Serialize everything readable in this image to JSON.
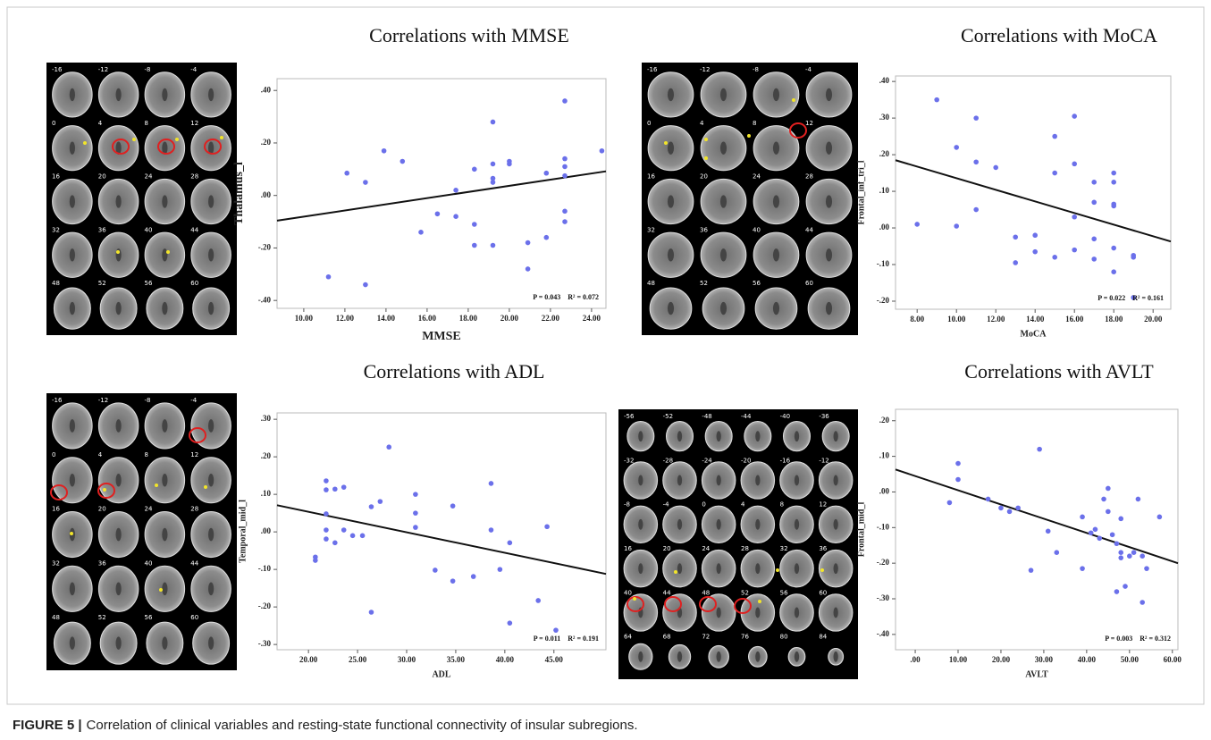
{
  "chart_data": [
    {
      "type": "scatter",
      "title": "Correlations with MMSE",
      "x_label": "MMSE",
      "y_label": "Thalamus_l",
      "color": "#6b70ea",
      "x": [
        11.2,
        12.1,
        13.0,
        13.0,
        13.9,
        14.8,
        15.7,
        16.5,
        17.4,
        17.4,
        18.3,
        18.3,
        18.3,
        19.2,
        19.2,
        19.2,
        19.2,
        19.2,
        20.0,
        20.0,
        20.9,
        20.9,
        21.8,
        21.8,
        22.7,
        22.7,
        22.7,
        22.7,
        22.7,
        22.7,
        24.5
      ],
      "values": [
        -0.31,
        0.085,
        0.05,
        -0.34,
        0.17,
        0.13,
        -0.14,
        -0.07,
        0.02,
        -0.08,
        0.1,
        -0.11,
        -0.19,
        0.28,
        0.12,
        0.065,
        0.05,
        -0.19,
        0.13,
        0.12,
        -0.18,
        -0.28,
        0.085,
        -0.16,
        0.36,
        0.14,
        0.11,
        0.075,
        -0.06,
        -0.1,
        0.17
      ],
      "fit": {
        "x": [
          8.7,
          24.7
        ],
        "y": [
          -0.096,
          0.092
        ]
      },
      "annotations": [
        "P = 0.043",
        "R² = 0.072"
      ],
      "xlim": [
        8.7,
        24.7
      ],
      "ylim": [
        -0.43,
        0.445
      ],
      "xticks": [
        {
          "value": 10,
          "label": "10.00"
        },
        {
          "value": 12,
          "label": "12.00"
        },
        {
          "value": 14,
          "label": "14.00"
        },
        {
          "value": 16,
          "label": "16.00"
        },
        {
          "value": 18,
          "label": "18.00"
        },
        {
          "value": 20,
          "label": "20.00"
        },
        {
          "value": 22,
          "label": "22.00"
        },
        {
          "value": 24,
          "label": "24.00"
        }
      ],
      "yticks": [
        {
          "value": 0.4,
          "label": ".40"
        },
        {
          "value": 0.2,
          "label": ".20"
        },
        {
          "value": 0,
          "label": ".00"
        },
        {
          "value": -0.2,
          "label": "-.20"
        },
        {
          "value": -0.4,
          "label": "-.40"
        }
      ]
    },
    {
      "type": "scatter",
      "title": "Correlations with MoCA",
      "x_label": "MoCA",
      "y_label": "Frontal_inf_tri_l",
      "color": "#6b70ea",
      "x": [
        8,
        9,
        10,
        10,
        11,
        11,
        11,
        12,
        13,
        13,
        14,
        14,
        15,
        15,
        15,
        16,
        16,
        16,
        16,
        17,
        17,
        17,
        17,
        18,
        18,
        18,
        18,
        18,
        18,
        19,
        19,
        19
      ],
      "values": [
        0.01,
        0.35,
        0.22,
        0.005,
        0.3,
        0.18,
        0.05,
        0.165,
        -0.025,
        -0.095,
        -0.02,
        -0.065,
        0.25,
        0.15,
        -0.08,
        0.305,
        0.175,
        0.03,
        -0.06,
        0.125,
        0.07,
        -0.03,
        -0.085,
        0.15,
        0.125,
        0.065,
        0.06,
        -0.055,
        -0.12,
        -0.08,
        -0.075,
        -0.19
      ],
      "fit": {
        "x": [
          6.9,
          20.9
        ],
        "y": [
          0.185,
          -0.037
        ]
      },
      "annotations": [
        "P = 0.022",
        "R² = 0.161"
      ],
      "xlim": [
        6.9,
        20.9
      ],
      "ylim": [
        -0.222,
        0.415
      ],
      "xticks": [
        {
          "value": 8,
          "label": "8.00"
        },
        {
          "value": 10,
          "label": "10.00"
        },
        {
          "value": 12,
          "label": "12.00"
        },
        {
          "value": 14,
          "label": "14.00"
        },
        {
          "value": 16,
          "label": "16.00"
        },
        {
          "value": 18,
          "label": "18.00"
        },
        {
          "value": 20,
          "label": "20.00"
        }
      ],
      "yticks": [
        {
          "value": 0.4,
          "label": ".40"
        },
        {
          "value": 0.3,
          "label": ".30"
        },
        {
          "value": 0.2,
          "label": ".20"
        },
        {
          "value": 0.1,
          "label": ".10"
        },
        {
          "value": 0,
          "label": ".00"
        },
        {
          "value": -0.1,
          "label": "-.10"
        },
        {
          "value": -0.2,
          "label": "-.20"
        }
      ]
    },
    {
      "type": "scatter",
      "title": "Correlations with ADL",
      "x_label": "ADL",
      "y_label": "Temporal_mid_l",
      "color": "#6b70ea",
      "x": [
        20.7,
        20.7,
        21.8,
        21.8,
        21.8,
        21.8,
        21.8,
        22.7,
        22.7,
        23.6,
        23.6,
        24.5,
        25.5,
        26.4,
        26.4,
        27.3,
        28.2,
        30.9,
        30.9,
        30.9,
        32.9,
        34.7,
        34.7,
        36.8,
        38.6,
        38.6,
        39.5,
        40.5,
        40.5,
        43.4,
        44.3,
        45.2
      ],
      "values": [
        -0.067,
        -0.076,
        0.136,
        0.112,
        0.048,
        0.005,
        -0.019,
        0.114,
        -0.029,
        0.119,
        0.005,
        -0.01,
        -0.01,
        0.067,
        -0.214,
        0.081,
        0.226,
        0.1,
        0.05,
        0.012,
        -0.102,
        0.069,
        -0.131,
        -0.119,
        0.129,
        0.005,
        -0.1,
        -0.029,
        -0.243,
        -0.183,
        0.014,
        -0.262
      ],
      "fit": {
        "x": [
          16.8,
          50.3
        ],
        "y": [
          0.071,
          -0.112
        ]
      },
      "annotations": [
        "P = 0.011",
        "R² = 0.191"
      ],
      "xlim": [
        16.8,
        50.3
      ],
      "ylim": [
        -0.314,
        0.317
      ],
      "xticks": [
        {
          "value": 20,
          "label": "20.00"
        },
        {
          "value": 25,
          "label": "25.00"
        },
        {
          "value": 30,
          "label": "30.00"
        },
        {
          "value": 35,
          "label": "35.00"
        },
        {
          "value": 40,
          "label": "40.00"
        },
        {
          "value": 45,
          "label": "45.00"
        }
      ],
      "yticks": [
        {
          "value": 0.3,
          "label": ".30"
        },
        {
          "value": 0.2,
          "label": ".20"
        },
        {
          "value": 0.1,
          "label": ".10"
        },
        {
          "value": 0,
          "label": ".00"
        },
        {
          "value": -0.1,
          "label": "-.10"
        },
        {
          "value": -0.2,
          "label": "-.20"
        },
        {
          "value": -0.3,
          "label": "-.30"
        }
      ]
    },
    {
      "type": "scatter",
      "title": "Correlations with AVLT",
      "x_label": "AVLT",
      "y_label": "Frontal_mid_l",
      "color": "#6b70ea",
      "x": [
        8,
        10,
        10,
        17,
        20,
        22,
        24,
        27,
        29,
        31,
        33,
        39,
        39,
        41,
        42,
        43,
        44,
        45,
        45,
        46,
        47,
        47,
        48,
        48,
        48,
        49,
        50,
        51,
        52,
        53,
        53,
        54,
        57
      ],
      "values": [
        -0.03,
        0.08,
        0.035,
        -0.02,
        -0.045,
        -0.055,
        -0.045,
        -0.22,
        0.12,
        -0.11,
        -0.17,
        -0.07,
        -0.215,
        -0.115,
        -0.105,
        -0.13,
        -0.02,
        0.01,
        -0.055,
        -0.12,
        -0.145,
        -0.28,
        -0.075,
        -0.17,
        -0.185,
        -0.265,
        -0.18,
        -0.17,
        -0.02,
        -0.18,
        -0.31,
        -0.215,
        -0.07
      ],
      "fit": {
        "x": [
          -4.6,
          61.3
        ],
        "y": [
          0.063,
          -0.2
        ]
      },
      "annotations": [
        "P = 0.003",
        "R² = 0.312"
      ],
      "xlim": [
        -4.6,
        61.3
      ],
      "ylim": [
        -0.443,
        0.232
      ],
      "xticks": [
        {
          "value": 0,
          "label": ".00"
        },
        {
          "value": 10,
          "label": "10.00"
        },
        {
          "value": 20,
          "label": "20.00"
        },
        {
          "value": 30,
          "label": "30.00"
        },
        {
          "value": 40,
          "label": "40.00"
        },
        {
          "value": 50,
          "label": "50.00"
        },
        {
          "value": 60,
          "label": "60.00"
        }
      ],
      "yticks": [
        {
          "value": 0.2,
          "label": ".20"
        },
        {
          "value": 0.1,
          "label": ".10"
        },
        {
          "value": 0,
          "label": ".00"
        },
        {
          "value": -0.1,
          "label": "-.10"
        },
        {
          "value": -0.2,
          "label": "-.20"
        },
        {
          "value": -0.3,
          "label": "-.30"
        },
        {
          "value": -0.4,
          "label": "-.40"
        }
      ]
    }
  ],
  "brain_maps": [
    {
      "slices": [
        -16,
        -12,
        -8,
        -4,
        0,
        4,
        8,
        12,
        16,
        20,
        24,
        28,
        32,
        36,
        40,
        44,
        48,
        52,
        56,
        60
      ]
    },
    {
      "slices": [
        -16,
        -12,
        -8,
        -4,
        0,
        4,
        8,
        12,
        16,
        20,
        24,
        28,
        32,
        36,
        40,
        44,
        48,
        52,
        56,
        60
      ]
    },
    {
      "slices": [
        -16,
        -12,
        -8,
        -4,
        0,
        4,
        8,
        12,
        16,
        20,
        24,
        28,
        32,
        36,
        40,
        44,
        48,
        52,
        56,
        60
      ]
    },
    {
      "slices": [
        -56,
        -52,
        -48,
        -44,
        -40,
        -36,
        -32,
        -28,
        -24,
        -20,
        -16,
        -12,
        -8,
        -4,
        0,
        4,
        8,
        12,
        16,
        20,
        24,
        28,
        32,
        36,
        40,
        44,
        48,
        52,
        56,
        60,
        64,
        68,
        72,
        76,
        80,
        84
      ]
    }
  ],
  "caption": {
    "label": "FIGURE 5 |",
    "text": "Correlation of clinical variables and resting-state functional connectivity of insular subregions."
  }
}
